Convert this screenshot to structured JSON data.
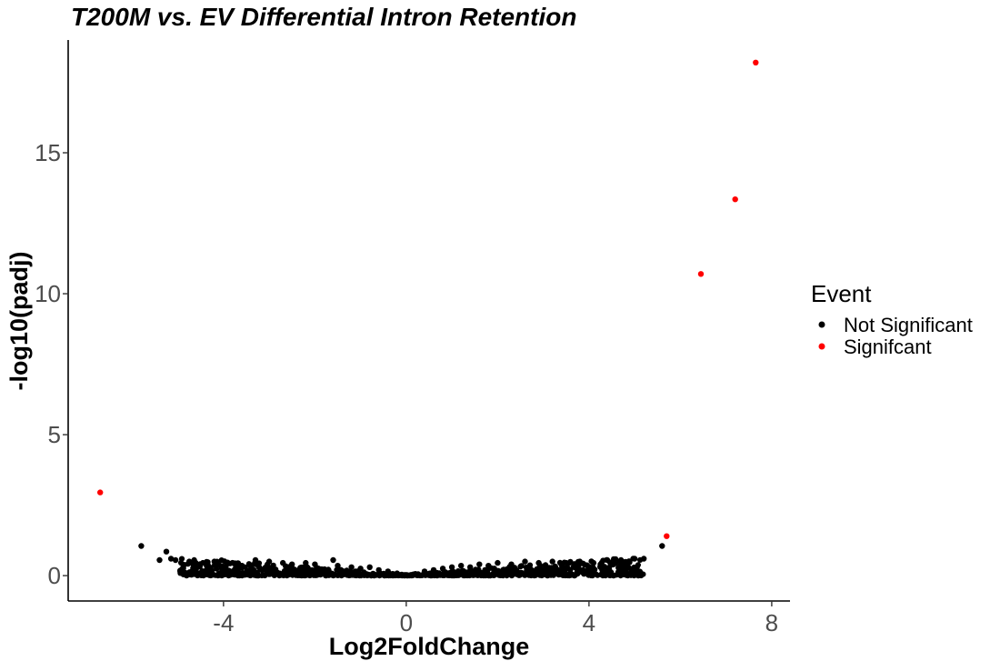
{
  "chart_data": {
    "type": "scatter",
    "title": "T200M vs. EV Differential Intron Retention",
    "xlabel": "Log2FoldChange",
    "ylabel": "-log10(padj)",
    "xlim": [
      -7.4,
      8.4
    ],
    "ylim": [
      -0.9,
      19
    ],
    "x_ticks": [
      -4,
      0,
      4,
      8
    ],
    "x_tick_labels": [
      "-4",
      "0",
      "4",
      "8"
    ],
    "y_ticks": [
      0,
      5,
      10,
      15
    ],
    "y_tick_labels": [
      "0",
      "5",
      "10",
      "15"
    ],
    "grid": false,
    "legend": {
      "title": "Event",
      "position": "right",
      "entries": [
        {
          "label": "Not Significant",
          "color": "#000000"
        },
        {
          "label": "Signifcant",
          "color": "#ff0000"
        }
      ]
    },
    "series": [
      {
        "name": "Not Significant",
        "color": "#000000",
        "points": [
          [
            -5.8,
            1.05
          ],
          [
            -5.25,
            0.85
          ],
          [
            -5.4,
            0.55
          ],
          [
            -5.15,
            0.6
          ],
          [
            -5.05,
            0.55
          ],
          [
            -4.9,
            0.2
          ],
          [
            -4.75,
            0.5
          ],
          [
            -4.6,
            0.25
          ],
          [
            -4.45,
            0.45
          ],
          [
            -4.3,
            0.2
          ],
          [
            -4.2,
            0.5
          ],
          [
            -4.0,
            0.3
          ],
          [
            -3.8,
            0.45
          ],
          [
            -3.6,
            0.35
          ],
          [
            -3.3,
            0.55
          ],
          [
            -3.0,
            0.5
          ],
          [
            -2.7,
            0.45
          ],
          [
            -2.5,
            0.4
          ],
          [
            -2.2,
            0.45
          ],
          [
            -2.0,
            0.4
          ],
          [
            -1.6,
            0.55
          ],
          [
            -1.5,
            0.35
          ],
          [
            -1.2,
            0.3
          ],
          [
            -1.0,
            0.25
          ],
          [
            -0.8,
            0.3
          ],
          [
            -0.6,
            0.2
          ],
          [
            -0.4,
            0.15
          ],
          [
            -0.2,
            0.08
          ],
          [
            0.0,
            0.02
          ],
          [
            0.2,
            0.06
          ],
          [
            0.4,
            0.15
          ],
          [
            0.6,
            0.2
          ],
          [
            0.8,
            0.25
          ],
          [
            1.0,
            0.3
          ],
          [
            1.2,
            0.35
          ],
          [
            1.4,
            0.3
          ],
          [
            1.6,
            0.4
          ],
          [
            1.8,
            0.35
          ],
          [
            2.0,
            0.45
          ],
          [
            2.3,
            0.4
          ],
          [
            2.6,
            0.5
          ],
          [
            2.9,
            0.45
          ],
          [
            3.2,
            0.5
          ],
          [
            3.5,
            0.45
          ],
          [
            3.8,
            0.5
          ],
          [
            4.1,
            0.45
          ],
          [
            4.4,
            0.55
          ],
          [
            4.7,
            0.55
          ],
          [
            5.0,
            0.6
          ],
          [
            5.2,
            0.6
          ],
          [
            5.6,
            1.05
          ]
        ]
      },
      {
        "name": "Signifcant",
        "color": "#ff0000",
        "points": [
          [
            -6.7,
            2.95
          ],
          [
            5.7,
            1.4
          ],
          [
            6.45,
            10.7
          ],
          [
            7.2,
            13.35
          ],
          [
            7.65,
            18.2
          ]
        ]
      }
    ]
  }
}
